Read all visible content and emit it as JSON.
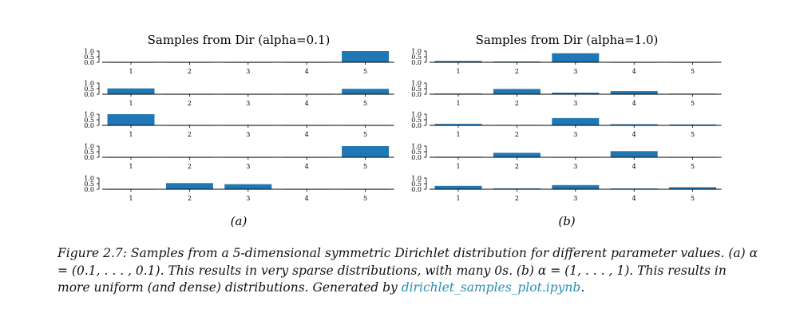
{
  "chart_data": [
    {
      "type": "bar",
      "title": "Samples from Dir (alpha=0.1)",
      "panel_label": "(a)",
      "categories": [
        "1",
        "2",
        "3",
        "4",
        "5"
      ],
      "yticks": [
        "1.0",
        "0.5",
        "0.0"
      ],
      "ylim": [
        0,
        1
      ],
      "grid": false,
      "color": "#1f77b4",
      "series": [
        {
          "values": [
            0.0,
            0.0,
            0.0,
            0.0,
            1.0
          ]
        },
        {
          "values": [
            0.52,
            0.0,
            0.0,
            0.0,
            0.48
          ]
        },
        {
          "values": [
            1.0,
            0.0,
            0.0,
            0.0,
            0.0
          ]
        },
        {
          "values": [
            0.0,
            0.0,
            0.0,
            0.0,
            1.0
          ]
        },
        {
          "values": [
            0.0,
            0.55,
            0.45,
            0.0,
            0.0
          ]
        }
      ]
    },
    {
      "type": "bar",
      "title": "Samples from Dir (alpha=1.0)",
      "panel_label": "(b)",
      "categories": [
        "1",
        "2",
        "3",
        "4",
        "5"
      ],
      "yticks": [
        "1.0",
        "0.5",
        "0.0"
      ],
      "ylim": [
        0,
        1
      ],
      "grid": false,
      "color": "#1f77b4",
      "series": [
        {
          "values": [
            0.12,
            0.07,
            0.81,
            0.0,
            0.0
          ]
        },
        {
          "values": [
            0.06,
            0.47,
            0.14,
            0.28,
            0.05
          ]
        },
        {
          "values": [
            0.13,
            0.04,
            0.65,
            0.1,
            0.08
          ]
        },
        {
          "values": [
            0.05,
            0.4,
            0.0,
            0.55,
            0.0
          ]
        },
        {
          "values": [
            0.3,
            0.08,
            0.37,
            0.07,
            0.18
          ]
        }
      ]
    }
  ],
  "caption": {
    "text": "Figure 2.7: Samples from a 5-dimensional symmetric Dirichlet distribution for different parameter values. (a) α = (0.1, . . . , 0.1). This results in very sparse distributions, with many 0s. (b) α = (1, . . . , 1). This results in more uniform (and dense) distributions. Generated by ",
    "link": "dirichlet_samples_plot.ipynb",
    "end": "."
  }
}
